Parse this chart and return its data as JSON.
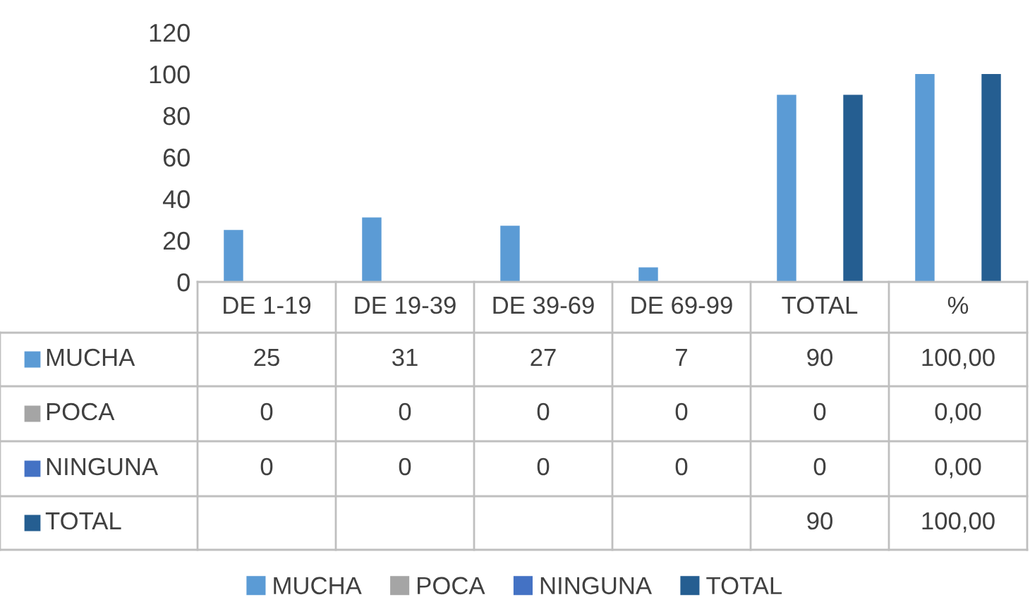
{
  "chart_data": {
    "type": "bar",
    "categories": [
      "DE 1-19",
      "DE 19-39",
      "DE 39-69",
      "DE 69-99",
      "TOTAL",
      "%"
    ],
    "series": [
      {
        "name": "MUCHA",
        "color": "#5b9bd5",
        "values": [
          25,
          31,
          27,
          7,
          90,
          100
        ],
        "value_labels": [
          "25",
          "31",
          "27",
          "7",
          "90",
          "100,00"
        ]
      },
      {
        "name": "POCA",
        "color": "#a5a5a5",
        "values": [
          0,
          0,
          0,
          0,
          0,
          0
        ],
        "value_labels": [
          "0",
          "0",
          "0",
          "0",
          "0",
          "0,00"
        ]
      },
      {
        "name": "NINGUNA",
        "color": "#4472c4",
        "values": [
          0,
          0,
          0,
          0,
          0,
          0
        ],
        "value_labels": [
          "0",
          "0",
          "0",
          "0",
          "0",
          "0,00"
        ]
      },
      {
        "name": "TOTAL",
        "color": "#255e91",
        "values": [
          null,
          null,
          null,
          null,
          90,
          100
        ],
        "value_labels": [
          null,
          null,
          null,
          null,
          "90",
          "100,00"
        ]
      }
    ],
    "ylim": [
      0,
      120
    ],
    "yticks": [
      0,
      20,
      40,
      60,
      80,
      100,
      120
    ],
    "grid": false,
    "legend": "bottom"
  }
}
